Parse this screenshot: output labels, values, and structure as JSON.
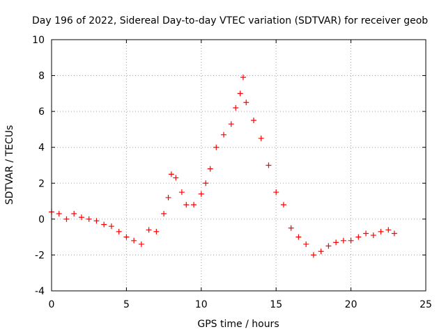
{
  "chart_data": {
    "type": "scatter",
    "title": "Day 196 of 2022, Sidereal Day-to-day VTEC variation (SDTVAR) for receiver geob",
    "xlabel": "GPS time / hours",
    "ylabel": "SDTVAR / TECUs",
    "xlim": [
      0,
      25
    ],
    "ylim": [
      -4,
      10
    ],
    "xticks": [
      0,
      5,
      10,
      15,
      20,
      25
    ],
    "yticks": [
      -4,
      -2,
      0,
      2,
      4,
      6,
      8,
      10
    ],
    "grid": true,
    "marker": "+",
    "series": [
      {
        "name": "SDTVAR",
        "color": "#ff0000",
        "x": [
          0.0,
          0.5,
          1.0,
          1.5,
          2.0,
          2.5,
          3.0,
          3.5,
          4.0,
          4.5,
          5.0,
          5.5,
          6.0,
          6.5,
          7.0,
          7.5,
          7.8,
          8.0,
          8.3,
          8.7,
          9.0,
          9.5,
          10.0,
          10.3,
          10.6,
          11.0,
          11.5,
          12.0,
          12.3,
          12.6,
          12.8,
          13.0,
          13.5,
          14.0,
          14.5,
          15.0,
          15.5,
          16.0,
          16.5,
          17.0,
          17.5,
          18.0,
          18.5,
          19.0,
          19.5,
          20.0,
          20.5,
          21.0,
          21.5,
          22.0,
          22.5,
          22.9
        ],
        "y": [
          0.4,
          0.3,
          0.0,
          0.3,
          0.1,
          0.0,
          -0.1,
          -0.3,
          -0.4,
          -0.7,
          -1.0,
          -1.2,
          -1.4,
          -0.6,
          -0.7,
          0.3,
          1.2,
          2.5,
          2.3,
          1.5,
          0.8,
          0.8,
          1.4,
          2.0,
          2.8,
          4.0,
          4.7,
          5.3,
          6.2,
          7.0,
          7.9,
          6.5,
          5.5,
          4.5,
          3.0,
          1.5,
          0.8,
          -0.5,
          -1.0,
          -1.4,
          -2.0,
          -1.8,
          -1.5,
          -1.3,
          -1.2,
          -1.2,
          -1.0,
          -0.8,
          -0.9,
          -0.7,
          -0.6,
          -0.8
        ]
      }
    ]
  }
}
